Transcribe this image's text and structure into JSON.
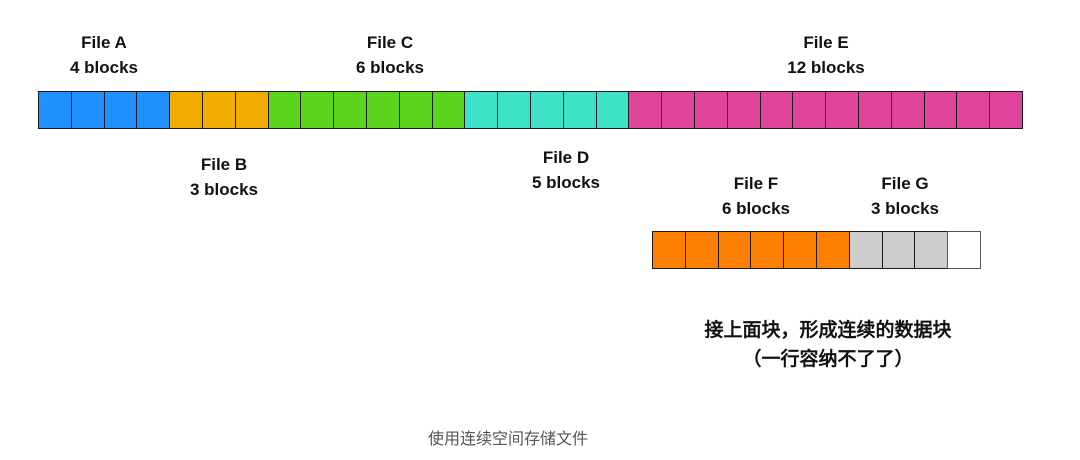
{
  "files": [
    {
      "name": "File A",
      "size": "4 blocks",
      "blocks": 4,
      "color": "#1E90FF"
    },
    {
      "name": "File B",
      "size": "3 blocks",
      "blocks": 3,
      "color": "#F0AD00"
    },
    {
      "name": "File C",
      "size": "6 blocks",
      "blocks": 6,
      "color": "#5CD41C"
    },
    {
      "name": "File D",
      "size": "5 blocks",
      "blocks": 5,
      "color": "#3DE2C8"
    },
    {
      "name": "File E",
      "size": "12 blocks",
      "blocks": 12,
      "color": "#E0449A"
    }
  ],
  "new_files": [
    {
      "name": "File F",
      "size": "6 blocks",
      "blocks": 6,
      "color": "#FF8000"
    },
    {
      "name": "File G",
      "size": "3 blocks",
      "blocks": 3,
      "color": "#CCCCCC"
    }
  ],
  "empty_block_color": "#FFFFFF",
  "note": {
    "line1": "接上面块，形成连续的数据块",
    "line2": "（一行容纳不了了）"
  },
  "caption": "使用连续空间存储文件"
}
